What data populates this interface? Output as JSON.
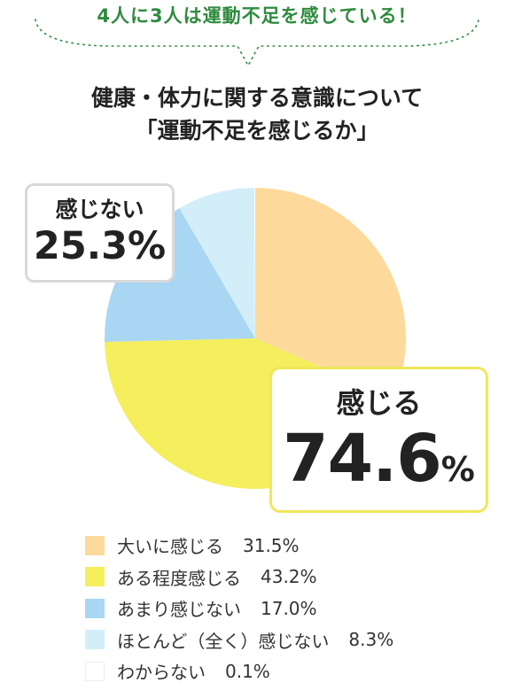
{
  "headline": "4人に3人は運動不足を感じている！",
  "title_line1": "健康・体力に関する意識について",
  "title_line2": "「運動不足を感じるか」",
  "callout_negative": {
    "label": "感じない",
    "value": "25.3%"
  },
  "callout_positive": {
    "label": "感じる",
    "value": "74.6",
    "unit": "%"
  },
  "chart_data": {
    "type": "pie",
    "title": "健康・体力に関する意識について「運動不足を感じるか」",
    "slices": [
      {
        "label": "大いに感じる",
        "value": 31.5,
        "display": "31.5%",
        "color": "#fdda9b"
      },
      {
        "label": "ある程度感じる",
        "value": 43.2,
        "display": "43.2%",
        "color": "#f5ee5d"
      },
      {
        "label": "あまり感じない",
        "value": 17.0,
        "display": "17.0%",
        "color": "#a9d6f3"
      },
      {
        "label": "ほとんど（全く）感じない",
        "value": 8.3,
        "display": "8.3%",
        "color": "#d3eef9"
      },
      {
        "label": "わからない",
        "value": 0.1,
        "display": "0.1%",
        "color": "#ffffff"
      }
    ]
  }
}
